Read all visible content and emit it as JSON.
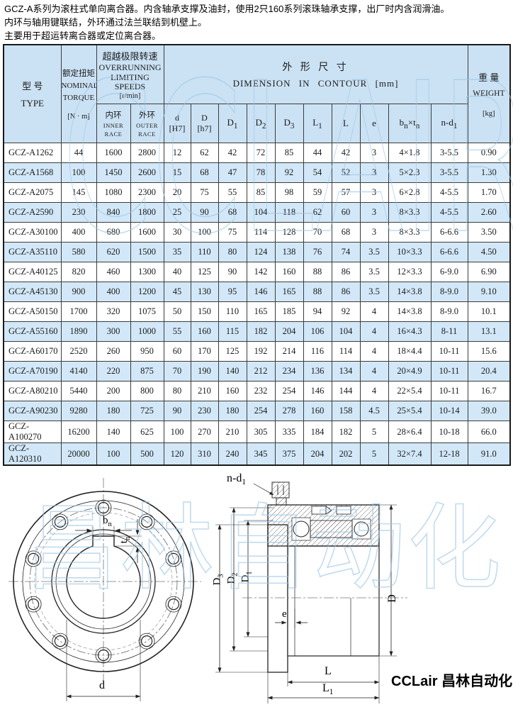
{
  "intro": {
    "line1": "GCZ-A系列为滚柱式单向离合器。内含轴承支撑及油封，使用2只160系列滚珠轴承支撑，出厂时内含润滑油。",
    "line2": "内环与轴用键联结，外环通过法兰联结到机壁上。",
    "line3": "主要用于超运转离合器或定位离合器。"
  },
  "table": {
    "header": {
      "type_cn": "型 号",
      "type_en": "TYPE",
      "torque_cn": "额定扭矩",
      "torque_en1": "NOMINAL",
      "torque_en2": "TORQUE",
      "torque_unit": "[N · m]",
      "speed_cn": "超越极限转速",
      "speed_en1": "OVERRUNNING",
      "speed_en2": "LIMITING SPEEDS",
      "speed_unit": "[r/min]",
      "inner_cn": "内环",
      "inner_en1": "INNER",
      "inner_en2": "RACE",
      "outer_cn": "外环",
      "outer_en1": "OUTER",
      "outer_en2": "RACE",
      "dim_cn": "外 形 尺 寸",
      "dim_en": "DIMENSION IN CONTOUR [mm]",
      "weight_cn": "重 量",
      "weight_en": "WEIGHT",
      "weight_unit": "[kg]",
      "dim_cols": [
        {
          "id": "d",
          "line1": "d",
          "line2": "[H7]"
        },
        {
          "id": "D",
          "line1": "D",
          "line2": "[h7]"
        },
        {
          "id": "D1",
          "base": "D",
          "sub": "1"
        },
        {
          "id": "D2",
          "base": "D",
          "sub": "2"
        },
        {
          "id": "D3",
          "base": "D",
          "sub": "3"
        },
        {
          "id": "L1",
          "base": "L",
          "sub": "1"
        },
        {
          "id": "L",
          "base": "L"
        },
        {
          "id": "e",
          "base": "e"
        },
        {
          "id": "bt",
          "base": "b",
          "sub": "n",
          "base2": "×t",
          "sub2": "n"
        },
        {
          "id": "nd1",
          "base": "n-d",
          "sub": "1"
        }
      ]
    },
    "rows": [
      [
        "GCZ-A1262",
        "44",
        "1600",
        "2800",
        "12",
        "62",
        "42",
        "72",
        "85",
        "44",
        "42",
        "3",
        "4×1.8",
        "3-5.5",
        "0.90"
      ],
      [
        "GCZ-A1568",
        "100",
        "1450",
        "2600",
        "15",
        "68",
        "47",
        "78",
        "92",
        "54",
        "52",
        "3",
        "5×2.3",
        "3-5.5",
        "1.30"
      ],
      [
        "GCZ-A2075",
        "145",
        "1080",
        "2300",
        "20",
        "75",
        "55",
        "85",
        "98",
        "59",
        "57",
        "3",
        "6×2.8",
        "4-5.5",
        "1.70"
      ],
      [
        "GCZ-A2590",
        "230",
        "840",
        "1800",
        "25",
        "90",
        "68",
        "104",
        "118",
        "62",
        "60",
        "3",
        "8×3.3",
        "4-5.5",
        "2.60"
      ],
      [
        "GCZ-A30100",
        "400",
        "680",
        "1600",
        "30",
        "100",
        "75",
        "114",
        "128",
        "70",
        "68",
        "3",
        "8×3.3",
        "6-6.6",
        "3.50"
      ],
      [
        "GCZ-A35110",
        "580",
        "620",
        "1500",
        "35",
        "110",
        "80",
        "124",
        "138",
        "76",
        "74",
        "3.5",
        "10×3.3",
        "6-6.6",
        "4.50"
      ],
      [
        "GCZ-A40125",
        "820",
        "460",
        "1300",
        "40",
        "125",
        "90",
        "142",
        "160",
        "88",
        "86",
        "3.5",
        "12×3.3",
        "6-9.0",
        "6.90"
      ],
      [
        "GCZ-A45130",
        "900",
        "400",
        "1200",
        "45",
        "130",
        "95",
        "146",
        "165",
        "88",
        "86",
        "3.5",
        "14×3.8",
        "8-9.0",
        "9.10"
      ],
      [
        "GCZ-A50150",
        "1700",
        "320",
        "1075",
        "50",
        "150",
        "110",
        "165",
        "185",
        "94",
        "92",
        "4",
        "14×3.8",
        "8-9.0",
        "10.1"
      ],
      [
        "GCZ-A55160",
        "1890",
        "300",
        "1000",
        "55",
        "160",
        "115",
        "182",
        "204",
        "106",
        "104",
        "4",
        "16×4.3",
        "8-11",
        "13.1"
      ],
      [
        "GCZ-A60170",
        "2520",
        "260",
        "950",
        "60",
        "170",
        "125",
        "192",
        "214",
        "116",
        "114",
        "4",
        "18×4.4",
        "10-11",
        "15.6"
      ],
      [
        "GCZ-A70190",
        "4140",
        "220",
        "875",
        "70",
        "190",
        "140",
        "212",
        "234",
        "136",
        "134",
        "4",
        "20×4.9",
        "10-11",
        "20.4"
      ],
      [
        "GCZ-A80210",
        "5440",
        "200",
        "800",
        "80",
        "210",
        "160",
        "232",
        "254",
        "146",
        "144",
        "4",
        "22×5.4",
        "10-11",
        "16.7"
      ],
      [
        "GCZ-A90230",
        "9280",
        "180",
        "725",
        "90",
        "230",
        "180",
        "254",
        "278",
        "160",
        "158",
        "4.5",
        "25×5.4",
        "10-14",
        "39.0"
      ],
      [
        "GCZ-A100270",
        "16200",
        "140",
        "625",
        "100",
        "270",
        "210",
        "305",
        "335",
        "184",
        "182",
        "5",
        "28×6.4",
        "10-18",
        "66.0"
      ],
      [
        "GCZ-A120310",
        "20000",
        "100",
        "500",
        "120",
        "310",
        "240",
        "345",
        "375",
        "204",
        "202",
        "5",
        "32×7.4",
        "12-18",
        "91.0"
      ]
    ]
  },
  "drawings": {
    "front": {
      "bn_base": "b",
      "bn_sub": "n",
      "tn_base": "t",
      "tn_sub": "n",
      "d": "d"
    },
    "section": {
      "nd1_base": "n-d",
      "nd1_sub": "1",
      "D3_base": "D",
      "D3_sub": "3",
      "D2_base": "D",
      "D2_sub": "2",
      "D1_base": "D",
      "D1_sub": "1",
      "e": "e",
      "D": "D",
      "L": "L",
      "L1_base": "L",
      "L1_sub": "1"
    }
  },
  "watermark": {
    "table_text": "CCLAIR",
    "drawings_text": "昌林自动化"
  },
  "footer": {
    "brand": "CCLair 昌林自动化"
  }
}
